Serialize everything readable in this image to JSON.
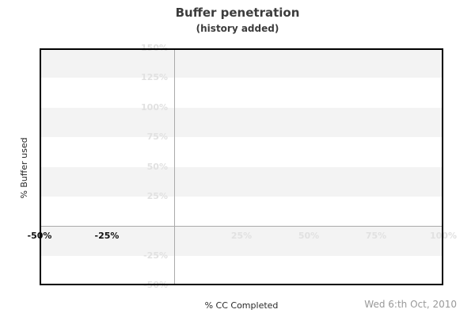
{
  "header": {
    "title": "Buffer penetration",
    "subtitle": "(history added)"
  },
  "footer": {
    "xlabel": "% CC Completed",
    "date": "Wed 6:th Oct, 2010"
  },
  "y_axis_title": "% Buffer used",
  "colors": {
    "stripe": "#f3f3f3",
    "stripe_alt": "#ffffff",
    "zero_line": "#aaaaaa",
    "tick_muted": "#e1e1e1",
    "tick_dark": "#111111",
    "plot_border": "#000000",
    "title_text": "#3c3c3c",
    "date_text": "#999999"
  },
  "chart_data": {
    "type": "line",
    "title": "Buffer penetration",
    "subtitle": "(history added)",
    "xlabel": "% CC Completed",
    "ylabel": "% Buffer used",
    "xlim": [
      -50,
      100
    ],
    "ylim": [
      -50,
      150
    ],
    "grid": "alternating horizontal bands every 25%, zero cross-hair lines at x=0 and y=0",
    "legend": "none",
    "series": [],
    "x_ticks": [
      {
        "value": -50,
        "label": "-50%",
        "muted": false
      },
      {
        "value": -25,
        "label": "-25%",
        "muted": false
      },
      {
        "value": 25,
        "label": "25%",
        "muted": true
      },
      {
        "value": 50,
        "label": "50%",
        "muted": true
      },
      {
        "value": 75,
        "label": "75%",
        "muted": true
      },
      {
        "value": 100,
        "label": "100%",
        "muted": true
      }
    ],
    "y_ticks": [
      {
        "value": 150,
        "label": "150%",
        "muted": true
      },
      {
        "value": 125,
        "label": "125%",
        "muted": true
      },
      {
        "value": 100,
        "label": "100%",
        "muted": true
      },
      {
        "value": 75,
        "label": "75%",
        "muted": true
      },
      {
        "value": 50,
        "label": "50%",
        "muted": true
      },
      {
        "value": 25,
        "label": "25%",
        "muted": true
      },
      {
        "value": -25,
        "label": "-25%",
        "muted": true
      },
      {
        "value": -50,
        "label": "-50%",
        "muted": true
      }
    ],
    "stripes": {
      "start": 150,
      "step": 25,
      "count": 8
    },
    "zero_lines": {
      "x": 0,
      "y": 0
    },
    "annotation_date": "Wed 6:th Oct, 2010"
  }
}
